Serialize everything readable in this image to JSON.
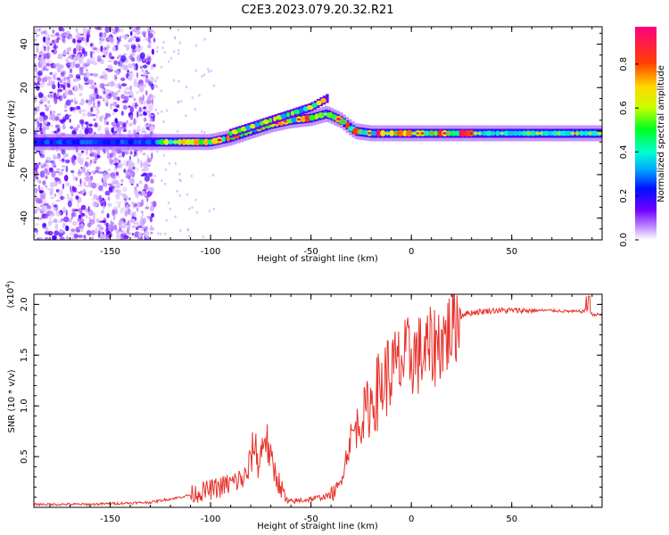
{
  "figure_title": "C2E3.2023.079.20.32.R21",
  "chart_data": [
    {
      "type": "heatmap",
      "title": "C2E3.2023.079.20.32.R21",
      "xlabel": "Height of straight line (km)",
      "ylabel": "Frequency (Hz)",
      "xlim": [
        -188,
        95
      ],
      "ylim": [
        -50,
        48
      ],
      "xticks": [
        -150,
        -100,
        -50,
        0,
        50
      ],
      "xtick_labels": [
        "-150",
        "-100",
        "-50",
        "0",
        "50"
      ],
      "yticks": [
        -40,
        -20,
        0,
        20,
        40
      ],
      "ytick_labels": [
        "-40",
        "-20",
        "0",
        "20",
        "40"
      ],
      "ridge": {
        "x": [
          -188,
          -150,
          -125,
          -100,
          -90,
          -80,
          -70,
          -60,
          -50,
          -42,
          -35,
          -28,
          -20,
          0,
          20,
          50,
          95
        ],
        "y": [
          -5,
          -5,
          -5,
          -5,
          -3,
          0,
          3,
          5,
          6,
          8,
          5,
          0,
          -1,
          -1,
          -1,
          -1,
          -1
        ]
      },
      "upper_branch": {
        "x": [
          -90,
          -80,
          -70,
          -60,
          -50,
          -42
        ],
        "y": [
          -1,
          2,
          5,
          8,
          11,
          15
        ]
      },
      "noise_region_x": [
        -188,
        -128
      ],
      "colorbar": {
        "label": "Normalized spectral amplitude",
        "range": [
          0,
          0.97
        ],
        "ticks": [
          0.0,
          0.2,
          0.4,
          0.6,
          0.8
        ],
        "tick_labels": [
          "0.0",
          "0.2",
          "0.4",
          "0.6",
          "0.8"
        ]
      }
    },
    {
      "type": "line",
      "xlabel": "Height of straight line (km)",
      "ylabel": "SNR (10 * v/v)",
      "exponent_label": "(x10",
      "exponent_sup": "4",
      "exponent_close": ")",
      "xlim": [
        -188,
        95
      ],
      "ylim": [
        0,
        2.1
      ],
      "xticks": [
        -150,
        -100,
        -50,
        0,
        50
      ],
      "xtick_labels": [
        "-150",
        "-100",
        "-50",
        "0",
        "50"
      ],
      "yticks": [
        0.5,
        1.0,
        1.5,
        2.0
      ],
      "ytick_labels": [
        "0.5",
        "1.0",
        "1.5",
        "2.0"
      ],
      "series": [
        {
          "name": "SNR",
          "color": "#e8322b",
          "x": [
            -188,
            -160,
            -130,
            -115,
            -105,
            -95,
            -88,
            -82,
            -78,
            -76,
            -73,
            -70,
            -66,
            -62,
            -58,
            -55,
            -50,
            -45,
            -40,
            -36,
            -33,
            -30,
            -27,
            -24,
            -21,
            -18,
            -15,
            -12,
            -9,
            -6,
            -3,
            0,
            3,
            6,
            9,
            12,
            15,
            18,
            21,
            25,
            30,
            35,
            40,
            50,
            60,
            70,
            80,
            85,
            88,
            90,
            95
          ],
          "y": [
            0.03,
            0.03,
            0.05,
            0.1,
            0.15,
            0.2,
            0.25,
            0.3,
            0.65,
            0.4,
            0.75,
            0.45,
            0.25,
            0.05,
            0.06,
            0.07,
            0.08,
            0.1,
            0.12,
            0.2,
            0.45,
            0.7,
            0.8,
            0.9,
            1.0,
            1.1,
            1.2,
            1.3,
            1.35,
            1.4,
            1.45,
            1.5,
            1.5,
            1.5,
            1.55,
            1.6,
            1.65,
            1.7,
            1.8,
            1.9,
            1.92,
            1.93,
            1.94,
            1.94,
            1.94,
            1.94,
            1.93,
            1.93,
            1.95,
            1.9,
            1.9
          ]
        }
      ]
    }
  ]
}
